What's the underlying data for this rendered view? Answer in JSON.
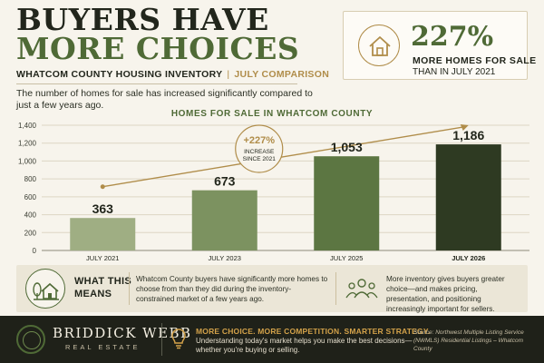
{
  "header": {
    "title_line1": "BUYERS HAVE",
    "title_line2": "MORE CHOICES",
    "subhead_main": "WHATCOM COUNTY HOUSING INVENTORY",
    "subhead_sep": "|",
    "subhead_accent": "JULY COMPARISON",
    "intro": "The number of homes for sale has increased significantly compared to just a few years ago."
  },
  "stat_card": {
    "value": "227%",
    "label_line1": "MORE HOMES FOR SALE",
    "label_line2": "THAN IN JULY 2021",
    "icon": "house-icon"
  },
  "chart_title": "HOMES FOR SALE IN WHATCOM COUNTY",
  "chart_data": {
    "type": "bar",
    "categories": [
      "JULY 2021",
      "JULY 2023",
      "JULY 2025",
      "JULY 2026"
    ],
    "values": [
      363,
      673,
      1053,
      1186
    ],
    "value_labels": [
      "363",
      "673",
      "1,053",
      "1,186"
    ],
    "ylim": [
      0,
      1400
    ],
    "yticks": [
      0,
      200,
      400,
      600,
      800,
      1000,
      1200,
      1400
    ],
    "ytick_labels": [
      "0",
      "200",
      "400",
      "600",
      "800",
      "1,000",
      "1,200",
      "1,400"
    ],
    "grid": true,
    "bar_colors": [
      "#9fae83",
      "#7c9260",
      "#5c7642",
      "#2e3a22"
    ],
    "trend_color": "#b08d4a",
    "annotation": {
      "value": "+227%",
      "line1": "INCREASE",
      "line2": "SINCE 2021"
    }
  },
  "means": {
    "heading_line1": "WHAT THIS",
    "heading_line2": "MEANS",
    "text1": "Whatcom County buyers have significantly more homes to choose from than they did during the inventory-constrained market of a few years ago.",
    "text2": "More inventory gives buyers greater choice—and makes pricing, presentation, and positioning increasingly important for sellers.",
    "icon_left": "house-with-tree-icon",
    "icon_right": "people-icon"
  },
  "footer": {
    "brand": "BRIDDICK WEBB",
    "brand_sub": "REAL ESTATE",
    "tagline": "MORE CHOICE. MORE COMPETITION. SMARTER STRATEGY.",
    "tagline_sub": "Understanding today's market helps you make the best decisions—whether you're buying or selling.",
    "source": "Source: Northwest Multiple Listing Service (NWMLS) Residential Listings – Whatcom County",
    "icon": "lightbulb-icon"
  },
  "colors": {
    "background": "#f7f4ec",
    "brand_green": "#4f6a36",
    "gold": "#b08d4a",
    "footer_bg": "#1f2119"
  }
}
